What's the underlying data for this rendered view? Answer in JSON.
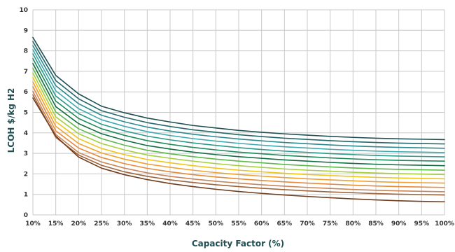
{
  "chart_data": {
    "type": "line",
    "title": "",
    "xlabel": "Capacity Factor (%)",
    "ylabel": "LCOH $/kg H2",
    "x": [
      10,
      15,
      20,
      25,
      30,
      35,
      40,
      45,
      50,
      55,
      60,
      65,
      70,
      75,
      80,
      85,
      90,
      95,
      100
    ],
    "x_tick_labels": [
      "10%",
      "15%",
      "20%",
      "25%",
      "30%",
      "35%",
      "40%",
      "45%",
      "50%",
      "55%",
      "60%",
      "65%",
      "70%",
      "75%",
      "80%",
      "85%",
      "90%",
      "95%",
      "100%"
    ],
    "y_ticks": [
      0,
      1,
      2,
      3,
      4,
      5,
      6,
      7,
      8,
      9,
      10
    ],
    "y_tick_labels": [
      "0",
      "1",
      "2",
      "3",
      "4",
      "5",
      "6",
      "7",
      "8",
      "9",
      "10"
    ],
    "xlim": [
      10,
      100
    ],
    "ylim": [
      0,
      10
    ],
    "grid": true,
    "legend": "none",
    "series": [
      {
        "color": "#1f4f52",
        "values": [
          8.65,
          6.8,
          5.9,
          5.3,
          4.98,
          4.72,
          4.53,
          4.36,
          4.24,
          4.12,
          4.03,
          3.95,
          3.89,
          3.83,
          3.78,
          3.74,
          3.71,
          3.69,
          3.67
        ]
      },
      {
        "color": "#23676a",
        "values": [
          8.45,
          6.55,
          5.66,
          5.08,
          4.76,
          4.5,
          4.31,
          4.15,
          4.03,
          3.91,
          3.82,
          3.74,
          3.68,
          3.62,
          3.57,
          3.53,
          3.5,
          3.48,
          3.46
        ]
      },
      {
        "color": "#2a8a8e",
        "values": [
          8.25,
          6.3,
          5.42,
          4.86,
          4.54,
          4.28,
          4.09,
          3.93,
          3.81,
          3.7,
          3.61,
          3.53,
          3.47,
          3.41,
          3.36,
          3.32,
          3.29,
          3.27,
          3.25
        ]
      },
      {
        "color": "#3fa9b0",
        "values": [
          8.05,
          6.05,
          5.18,
          4.64,
          4.32,
          4.06,
          3.87,
          3.72,
          3.6,
          3.49,
          3.4,
          3.32,
          3.26,
          3.2,
          3.15,
          3.11,
          3.08,
          3.06,
          3.04
        ]
      },
      {
        "color": "#2b9a8a",
        "values": [
          7.85,
          5.8,
          4.94,
          4.42,
          4.1,
          3.84,
          3.66,
          3.51,
          3.39,
          3.28,
          3.19,
          3.11,
          3.05,
          2.99,
          2.94,
          2.9,
          2.87,
          2.85,
          2.83
        ]
      },
      {
        "color": "#1e8a5a",
        "values": [
          7.62,
          5.55,
          4.7,
          4.2,
          3.88,
          3.62,
          3.44,
          3.29,
          3.17,
          3.06,
          2.98,
          2.9,
          2.84,
          2.78,
          2.73,
          2.69,
          2.66,
          2.64,
          2.62
        ]
      },
      {
        "color": "#0f6e3e",
        "values": [
          7.38,
          5.28,
          4.45,
          3.96,
          3.64,
          3.38,
          3.21,
          3.06,
          2.94,
          2.84,
          2.76,
          2.68,
          2.62,
          2.56,
          2.51,
          2.47,
          2.44,
          2.42,
          2.4
        ]
      },
      {
        "color": "#5cb848",
        "values": [
          7.15,
          5.02,
          4.2,
          3.72,
          3.4,
          3.15,
          2.98,
          2.84,
          2.72,
          2.62,
          2.54,
          2.46,
          2.4,
          2.34,
          2.29,
          2.25,
          2.22,
          2.2,
          2.18
        ]
      },
      {
        "color": "#a6cf3c",
        "values": [
          6.92,
          4.78,
          3.96,
          3.48,
          3.17,
          2.92,
          2.76,
          2.62,
          2.5,
          2.4,
          2.32,
          2.24,
          2.18,
          2.13,
          2.08,
          2.04,
          2.01,
          1.99,
          1.97
        ]
      },
      {
        "color": "#f0c419",
        "values": [
          6.7,
          4.55,
          3.72,
          3.24,
          2.94,
          2.7,
          2.54,
          2.4,
          2.28,
          2.18,
          2.1,
          2.03,
          1.97,
          1.92,
          1.87,
          1.83,
          1.8,
          1.78,
          1.76
        ]
      },
      {
        "color": "#f0a030",
        "values": [
          6.48,
          4.32,
          3.48,
          3.02,
          2.72,
          2.48,
          2.32,
          2.18,
          2.06,
          1.97,
          1.89,
          1.82,
          1.76,
          1.71,
          1.66,
          1.62,
          1.59,
          1.57,
          1.55
        ]
      },
      {
        "color": "#e58a3a",
        "values": [
          6.25,
          4.1,
          3.26,
          2.8,
          2.5,
          2.27,
          2.1,
          1.96,
          1.85,
          1.76,
          1.68,
          1.61,
          1.55,
          1.5,
          1.45,
          1.41,
          1.38,
          1.36,
          1.34
        ]
      },
      {
        "color": "#c8855a",
        "values": [
          6.02,
          3.92,
          3.04,
          2.58,
          2.28,
          2.05,
          1.88,
          1.75,
          1.64,
          1.55,
          1.47,
          1.4,
          1.34,
          1.29,
          1.24,
          1.2,
          1.17,
          1.15,
          1.13
        ]
      },
      {
        "color": "#a0643a",
        "values": [
          5.85,
          3.78,
          2.92,
          2.42,
          2.1,
          1.88,
          1.71,
          1.58,
          1.47,
          1.38,
          1.3,
          1.23,
          1.17,
          1.12,
          1.08,
          1.04,
          1.01,
          0.99,
          0.97
        ]
      },
      {
        "color": "#6e3e1e",
        "values": [
          5.7,
          3.84,
          2.82,
          2.28,
          1.96,
          1.72,
          1.53,
          1.38,
          1.25,
          1.14,
          1.05,
          0.97,
          0.9,
          0.84,
          0.78,
          0.73,
          0.69,
          0.66,
          0.64
        ]
      }
    ]
  }
}
